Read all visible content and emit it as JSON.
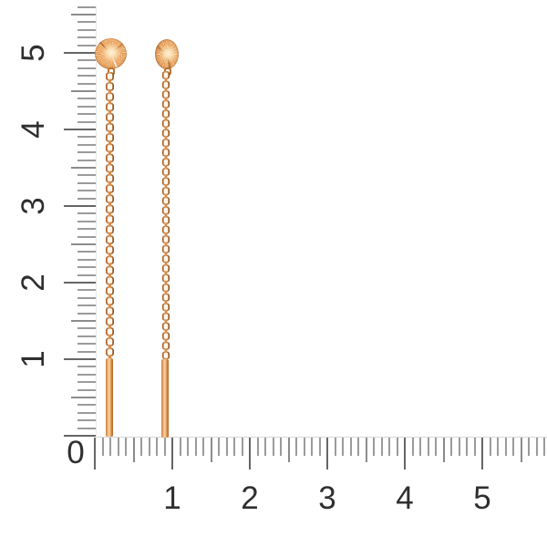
{
  "scene": {
    "type": "jewelry product photo with measurement rulers",
    "subject": "pair of gold threader chain earrings with diamond-cut sunburst disc studs and straight drop bars",
    "background_color": "#ffffff"
  },
  "ruler": {
    "origin_label": "0",
    "number_color": "#2f2f2f",
    "tick_color": "#9b9b9b",
    "long_tick_color": "#666666",
    "vertical": {
      "labels": [
        "5",
        "4",
        "3",
        "2",
        "1"
      ],
      "units_visible": 5.6,
      "minor_ticks_per_unit": 10,
      "label_rotation_deg": -90
    },
    "horizontal": {
      "labels": [
        "1",
        "2",
        "3",
        "4",
        "5"
      ],
      "units_visible": 5.8,
      "minor_ticks_per_unit": 10
    }
  },
  "earrings": {
    "count": 2,
    "metal_colors": {
      "highlight": "#fbd9ad",
      "mid": "#e59a52",
      "deep": "#b9722f",
      "shadow": "#8d4f1d"
    },
    "left": {
      "parts": [
        "sunburst-disc",
        "connector-link",
        "cable-chain",
        "drop-bar"
      ],
      "approx_length_units": 5.2
    },
    "right": {
      "parts": [
        "sunburst-disc",
        "connector-link",
        "cable-chain",
        "drop-bar"
      ],
      "approx_length_units": 5.2
    }
  }
}
